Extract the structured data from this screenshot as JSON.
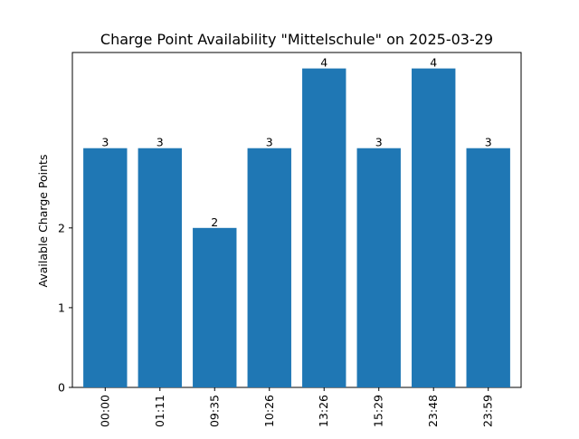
{
  "chart_data": {
    "type": "bar",
    "title": "Charge Point Availability \"Mittelschule\" on 2025-03-29",
    "xlabel": "",
    "ylabel": "Available Charge Points",
    "categories": [
      "00:00",
      "01:11",
      "09:35",
      "10:26",
      "13:26",
      "15:29",
      "23:48",
      "23:59"
    ],
    "values": [
      3,
      3,
      2,
      3,
      4,
      3,
      4,
      3
    ],
    "data_labels": [
      "3",
      "3",
      "2",
      "3",
      "4",
      "3",
      "4",
      "3"
    ],
    "yticks": [
      0,
      1,
      2
    ],
    "ylim": [
      0,
      4.2
    ],
    "grid": false,
    "bar_color": "#1f77b4"
  }
}
